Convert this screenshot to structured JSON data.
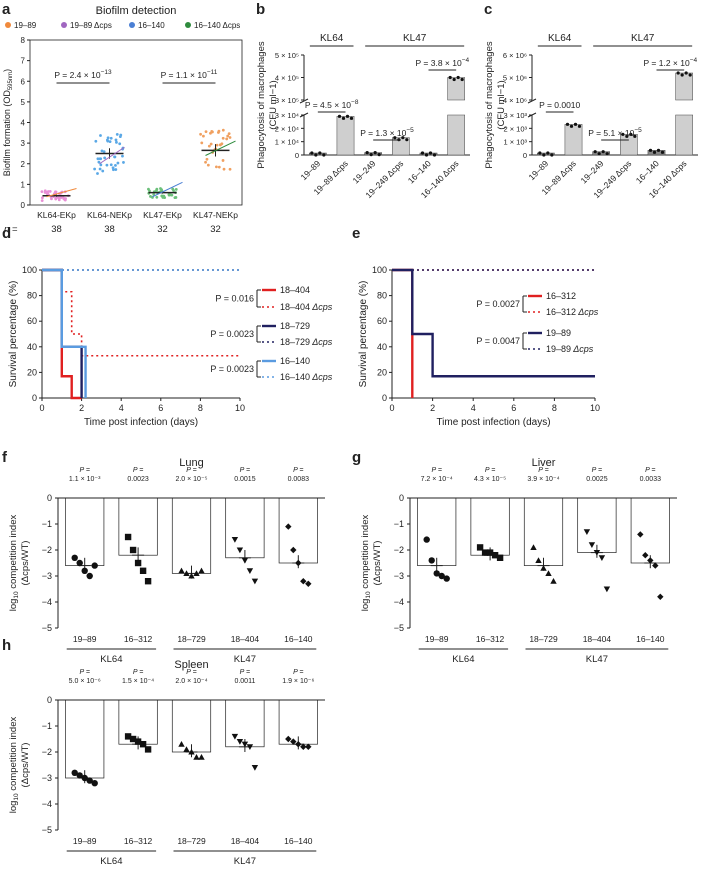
{
  "figure": {
    "panel_letters": [
      "a",
      "b",
      "c",
      "d",
      "e",
      "f",
      "g",
      "h"
    ]
  },
  "chart_data": [
    {
      "id": "a",
      "type": "scatter",
      "title": "Biofilm detection",
      "ylabel": "Biofilm formation (OD595nm)",
      "ylabel_main": "Biofilm formation (OD",
      "ylabel_sub": "595nm",
      "ylabel_close": ")",
      "ylim": [
        0,
        8
      ],
      "yticks": [
        0,
        1,
        2,
        3,
        4,
        5,
        6,
        7,
        8
      ],
      "legend": [
        {
          "name": "19–89",
          "color": "#f08a3c"
        },
        {
          "name": "19–89 Δcps",
          "color": "#a066c0"
        },
        {
          "name": "16–140",
          "color": "#4a7fd4"
        },
        {
          "name": "16–140 Δcps",
          "color": "#2e8b3d"
        }
      ],
      "categories": [
        "KL64-EKp",
        "KL64-NEKp",
        "KL47-EKp",
        "KL47-NEKp"
      ],
      "n_label": "n =",
      "n": [
        "38",
        "38",
        "32",
        "32"
      ],
      "means": [
        0.45,
        2.5,
        0.6,
        2.65
      ],
      "errors": [
        0.05,
        0.25,
        0.05,
        0.3
      ],
      "point_colors": [
        "#e88fd6",
        "#5aa8e6",
        "#6cc07a",
        "#f0a060"
      ],
      "comparisons": [
        {
          "from": 0,
          "to": 1,
          "label": "P = 2.4 × 10",
          "exp": "−13"
        },
        {
          "from": 2,
          "to": 3,
          "label": "P = 1.1 × 10",
          "exp": "−11"
        }
      ]
    },
    {
      "id": "b",
      "type": "bar",
      "ylabel": "Phagocytosis of macrophages",
      "ylabel2": "(CFU ml−1)",
      "groups": [
        {
          "label": "KL64"
        },
        {
          "label": "KL47"
        }
      ],
      "categories": [
        "19–89",
        "19–89 Δcps",
        "19–249",
        "19–249 Δcps",
        "16–140",
        "16–140 Δcps"
      ],
      "values": [
        1500,
        29000,
        1800,
        13000,
        1500,
        400000
      ],
      "ytick_labels_low": [
        "0",
        "1 × 10⁴",
        "2 × 10⁴",
        "3 × 10⁴"
      ],
      "ytick_labels_high": [
        "3 × 10⁵",
        "4 × 10⁵",
        "5 × 10⁵"
      ],
      "comparisons": [
        {
          "label": "P = 4.5 × 10",
          "exp": "−8"
        },
        {
          "label": "P = 1.3 × 10",
          "exp": "−5"
        },
        {
          "label": "P = 3.8 × 10",
          "exp": "−4"
        }
      ]
    },
    {
      "id": "c",
      "type": "bar",
      "ylabel": "Phagocytosis of macrophages",
      "ylabel2": "(CFU ml−1)",
      "groups": [
        {
          "label": "KL64"
        },
        {
          "label": "KL47"
        }
      ],
      "categories": [
        "19–89",
        "19–89 Δcps",
        "19–249",
        "19–249 Δcps",
        "16–140",
        "16–140 Δcps"
      ],
      "values": [
        150,
        2300,
        250,
        1550,
        350,
        5200000
      ],
      "ytick_labels_low": [
        "0",
        "1 × 10³",
        "2 × 10³",
        "3 × 10³"
      ],
      "ytick_labels_high": [
        "4 × 10⁶",
        "5 × 10⁶",
        "6 × 10⁶"
      ],
      "comparisons": [
        {
          "label": "P = 0.0010",
          "exp": ""
        },
        {
          "label": "P = 5.1 × 10",
          "exp": "−5"
        },
        {
          "label": "P = 1.2 × 10",
          "exp": "−4"
        }
      ]
    },
    {
      "id": "d",
      "type": "line",
      "xlabel": "Time post infection (days)",
      "ylabel": "Survival percentage (%)",
      "xlim": [
        0,
        10
      ],
      "ylim": [
        0,
        100
      ],
      "xticks": [
        0,
        2,
        4,
        6,
        8,
        10
      ],
      "yticks": [
        0,
        20,
        40,
        60,
        80,
        100
      ],
      "series": [
        {
          "name": "18–404",
          "color": "#e02020",
          "dashed": false,
          "x": [
            0,
            1,
            1,
            1.5,
            1.5,
            2
          ],
          "y": [
            100,
            100,
            17,
            17,
            0,
            0
          ]
        },
        {
          "name": "18–404 Δcps",
          "color": "#e02020",
          "dashed": true,
          "x": [
            0,
            1,
            1,
            1.5,
            1.5,
            2,
            2,
            10
          ],
          "y": [
            100,
            100,
            83,
            83,
            50,
            50,
            33,
            33
          ]
        },
        {
          "name": "18–729",
          "color": "#202060",
          "dashed": false,
          "x": [
            0,
            1,
            1,
            2,
            2
          ],
          "y": [
            100,
            100,
            40,
            40,
            0
          ]
        },
        {
          "name": "18–729 Δcps",
          "color": "#202060",
          "dashed": true,
          "x": [
            0,
            10
          ],
          "y": [
            100,
            100
          ]
        },
        {
          "name": "16–140",
          "color": "#5a9be0",
          "dashed": false,
          "x": [
            0,
            1,
            1,
            2.2,
            2.2
          ],
          "y": [
            100,
            100,
            40,
            40,
            0
          ]
        },
        {
          "name": "16–140 Δcps",
          "color": "#5a9be0",
          "dashed": true,
          "x": [
            0,
            10
          ],
          "y": [
            100,
            100
          ]
        }
      ],
      "pvalues": [
        "P = 0.016",
        "P = 0.0023",
        "P = 0.0023"
      ]
    },
    {
      "id": "e",
      "type": "line",
      "xlabel": "Time post infection (days)",
      "ylabel": "Survival percentage (%)",
      "xlim": [
        0,
        10
      ],
      "ylim": [
        0,
        100
      ],
      "xticks": [
        0,
        2,
        4,
        6,
        8,
        10
      ],
      "yticks": [
        0,
        20,
        40,
        60,
        80,
        100
      ],
      "series": [
        {
          "name": "16–312",
          "color": "#e02020",
          "dashed": false,
          "x": [
            0,
            1,
            1
          ],
          "y": [
            100,
            100,
            0
          ]
        },
        {
          "name": "16–312 Δcps",
          "color": "#e02020",
          "dashed": true,
          "x": [
            0,
            10
          ],
          "y": [
            100,
            100
          ]
        },
        {
          "name": "19–89",
          "color": "#202060",
          "dashed": false,
          "x": [
            0,
            1,
            1,
            2,
            2,
            10
          ],
          "y": [
            100,
            100,
            50,
            50,
            17,
            17
          ]
        },
        {
          "name": "19–89 Δcps",
          "color": "#202060",
          "dashed": true,
          "x": [
            0,
            10
          ],
          "y": [
            100,
            100
          ]
        }
      ],
      "pvalues": [
        "P = 0.0027",
        "P = 0.0047"
      ]
    },
    {
      "id": "f",
      "type": "bar",
      "title": "Lung",
      "ylabel": "log10 competition index",
      "ylabel2": "(Δcps/WT)",
      "ylim": [
        -5,
        0
      ],
      "yticks": [
        0,
        -1,
        -2,
        -3,
        -4,
        -5
      ],
      "categories": [
        "19–89",
        "16–312",
        "18–729",
        "18–404",
        "16–140"
      ],
      "group_labels": [
        "KL64",
        "KL47"
      ],
      "values": [
        -2.6,
        -2.2,
        -2.9,
        -2.3,
        -2.5
      ],
      "points": [
        [
          -2.3,
          -2.5,
          -2.8,
          -3.0,
          -2.6
        ],
        [
          -1.5,
          -2.0,
          -2.5,
          -2.8,
          -3.2
        ],
        [
          -2.8,
          -2.9,
          -3.0,
          -2.9,
          -2.8
        ],
        [
          -1.6,
          -2.0,
          -2.4,
          -2.8,
          -3.2
        ],
        [
          -1.1,
          -2.0,
          -2.5,
          -3.2,
          -3.3
        ]
      ],
      "pvalues": [
        [
          "P =",
          "1.1 × 10⁻³"
        ],
        [
          "P =",
          "0.0023"
        ],
        [
          "P =",
          "2.0 × 10⁻⁵"
        ],
        [
          "P =",
          "0.0015"
        ],
        [
          "P =",
          "0.0083"
        ]
      ],
      "marker": [
        "circle",
        "square",
        "triangle",
        "tri-down",
        "diamond"
      ]
    },
    {
      "id": "g",
      "type": "bar",
      "title": "Liver",
      "ylabel": "log10 competition index",
      "ylabel2": "(Δcps/WT)",
      "ylim": [
        -5,
        0
      ],
      "yticks": [
        0,
        -1,
        -2,
        -3,
        -4,
        -5
      ],
      "categories": [
        "19–89",
        "16–312",
        "18–729",
        "18–404",
        "16–140"
      ],
      "group_labels": [
        "KL64",
        "KL47"
      ],
      "values": [
        -2.6,
        -2.2,
        -2.6,
        -2.1,
        -2.5
      ],
      "points": [
        [
          -1.6,
          -2.4,
          -2.9,
          -3.0,
          -3.1
        ],
        [
          -1.9,
          -2.1,
          -2.1,
          -2.2,
          -2.3
        ],
        [
          -1.9,
          -2.4,
          -2.7,
          -2.9,
          -3.2
        ],
        [
          -1.3,
          -1.8,
          -2.1,
          -2.3,
          -3.5
        ],
        [
          -1.4,
          -2.2,
          -2.4,
          -2.6,
          -3.8
        ]
      ],
      "pvalues": [
        [
          "P =",
          "7.2 × 10⁻⁴"
        ],
        [
          "P =",
          "4.3 × 10⁻⁵"
        ],
        [
          "P =",
          "3.9 × 10⁻⁴"
        ],
        [
          "P =",
          "0.0025"
        ],
        [
          "P =",
          "0.0033"
        ]
      ],
      "marker": [
        "circle",
        "square",
        "triangle",
        "tri-down",
        "diamond"
      ]
    },
    {
      "id": "h",
      "type": "bar",
      "title": "Spleen",
      "ylabel": "log10 competition index",
      "ylabel2": "(Δcps/WT)",
      "ylim": [
        -5,
        0
      ],
      "yticks": [
        0,
        -1,
        -2,
        -3,
        -4,
        -5
      ],
      "categories": [
        "19–89",
        "16–312",
        "18–729",
        "18–404",
        "16–140"
      ],
      "group_labels": [
        "KL64",
        "KL47"
      ],
      "values": [
        -3.0,
        -1.7,
        -2.0,
        -1.8,
        -1.7
      ],
      "points": [
        [
          -2.8,
          -2.9,
          -3.0,
          -3.1,
          -3.2
        ],
        [
          -1.4,
          -1.5,
          -1.6,
          -1.7,
          -1.9
        ],
        [
          -1.7,
          -1.9,
          -2.0,
          -2.2,
          -2.2
        ],
        [
          -1.4,
          -1.6,
          -1.7,
          -1.8,
          -2.6
        ],
        [
          -1.5,
          -1.6,
          -1.7,
          -1.8,
          -1.8
        ]
      ],
      "pvalues": [
        [
          "P =",
          "5.0 × 10⁻⁶"
        ],
        [
          "P =",
          "1.5 × 10⁻⁴"
        ],
        [
          "P =",
          "2.0 × 10⁻⁴"
        ],
        [
          "P =",
          "0.0011"
        ],
        [
          "P =",
          "1.9 × 10⁻⁶"
        ]
      ],
      "marker": [
        "circle",
        "square",
        "triangle",
        "tri-down",
        "diamond"
      ]
    }
  ]
}
